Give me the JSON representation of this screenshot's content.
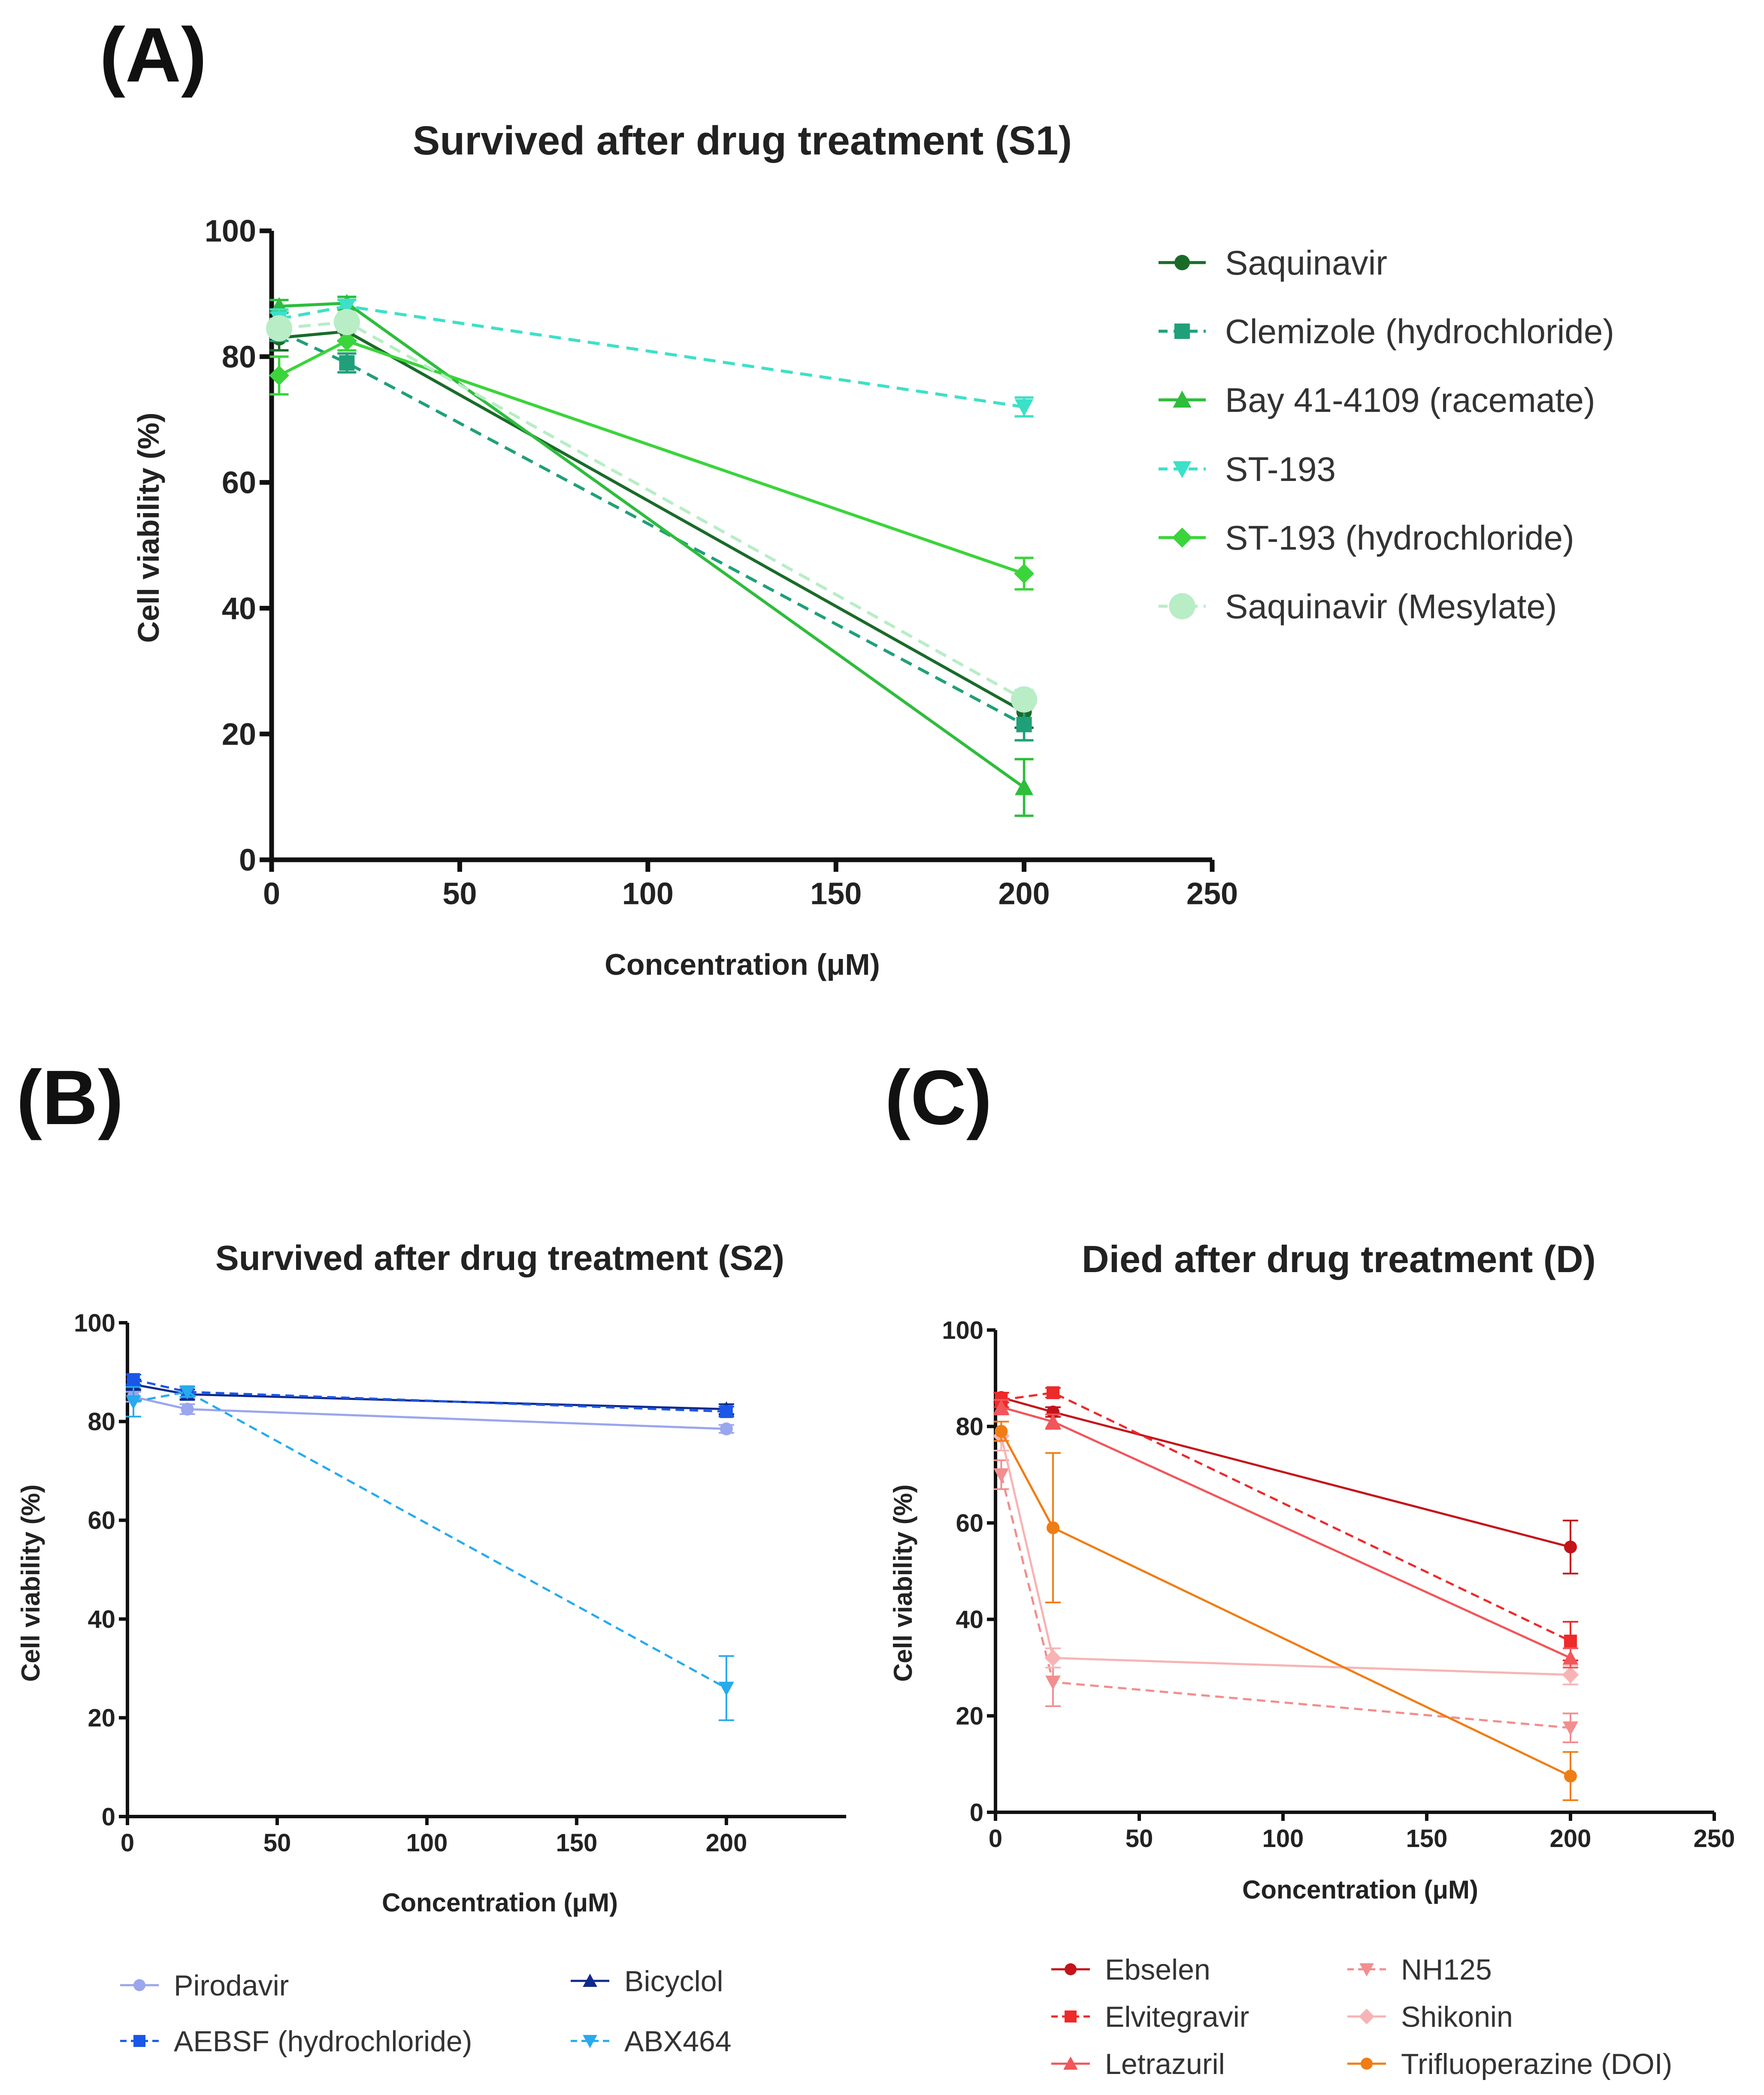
{
  "panels": {
    "A": "(A)",
    "B": "(B)",
    "C": "(C)"
  },
  "chart_data": [
    {
      "id": "A",
      "type": "line",
      "title": "Survived after drug treatment (S1)",
      "xlabel": "Concentration (μM)",
      "ylabel": "Cell viability (%)",
      "xlim": [
        0,
        250
      ],
      "ylim": [
        0,
        100
      ],
      "xticks": [
        0,
        50,
        100,
        150,
        200,
        250
      ],
      "yticks": [
        0,
        20,
        40,
        60,
        80,
        100
      ],
      "legend_position": "right",
      "series": [
        {
          "name": "Saquinavir",
          "color": "#1a6b2a",
          "dash": false,
          "marker": "circle",
          "x": [
            2,
            20,
            200
          ],
          "y": [
            83,
            84,
            23.5
          ],
          "err": [
            2,
            1.5,
            2.5
          ]
        },
        {
          "name": "Clemizole (hydrochloride)",
          "color": "#20a07a",
          "dash": true,
          "marker": "square",
          "x": [
            2,
            20,
            200
          ],
          "y": [
            84,
            79,
            21.5
          ],
          "err": [
            1.5,
            1.5,
            2.5
          ]
        },
        {
          "name": "Bay 41-4109 (racemate)",
          "color": "#2ebd3c",
          "dash": false,
          "marker": "triangle-up",
          "x": [
            2,
            20,
            200
          ],
          "y": [
            88,
            88.5,
            11.5
          ],
          "err": [
            1,
            1,
            4.5
          ]
        },
        {
          "name": "ST-193",
          "color": "#3de0c8",
          "dash": true,
          "marker": "triangle-down",
          "x": [
            2,
            20,
            200
          ],
          "y": [
            86,
            88,
            72
          ],
          "err": [
            1.5,
            1,
            1.5
          ]
        },
        {
          "name": "ST-193 (hydrochloride)",
          "color": "#3bd43b",
          "dash": false,
          "marker": "diamond",
          "x": [
            2,
            20,
            200
          ],
          "y": [
            77,
            82.5,
            45.5
          ],
          "err": [
            3,
            1.5,
            2.5
          ]
        },
        {
          "name": "Saquinavir (Mesylate)",
          "color": "#b8edc6",
          "dash": true,
          "marker": "big-circle",
          "x": [
            2,
            20,
            200
          ],
          "y": [
            84.5,
            85.5,
            25.5
          ],
          "err": [
            1.5,
            1.5,
            1.5
          ]
        }
      ]
    },
    {
      "id": "B",
      "type": "line",
      "title": "Survived after drug treatment (S2)",
      "xlabel": "Concentration (μM)",
      "ylabel": "Cell viability (%)",
      "xlim": [
        0,
        240
      ],
      "ylim": [
        0,
        100
      ],
      "xticks": [
        0,
        50,
        100,
        150,
        200
      ],
      "yticks": [
        0,
        20,
        40,
        60,
        80,
        100
      ],
      "legend_position": "bottom",
      "series": [
        {
          "name": "Pirodavir",
          "color": "#9aa6ee",
          "dash": false,
          "marker": "circle",
          "x": [
            2,
            20,
            200
          ],
          "y": [
            85,
            82.5,
            78.5
          ],
          "err": [
            1,
            1,
            0.8
          ]
        },
        {
          "name": "Bicyclol",
          "color": "#0d2a8c",
          "dash": false,
          "marker": "triangle-up",
          "x": [
            2,
            20,
            200
          ],
          "y": [
            87.5,
            85.5,
            82.5
          ],
          "err": [
            1,
            1,
            1
          ]
        },
        {
          "name": "AEBSF (hydrochloride)",
          "color": "#1a56e8",
          "dash": true,
          "marker": "square",
          "x": [
            2,
            20,
            200
          ],
          "y": [
            88.5,
            86,
            82
          ],
          "err": [
            1,
            1,
            1
          ]
        },
        {
          "name": "ABX464",
          "color": "#27aaee",
          "dash": true,
          "marker": "triangle-down",
          "x": [
            2,
            20,
            200
          ],
          "y": [
            84,
            86,
            26
          ],
          "err": [
            3,
            1,
            6.5
          ]
        }
      ]
    },
    {
      "id": "C",
      "type": "line",
      "title": "Died after drug treatment  (D)",
      "xlabel": "Concentration (μM)",
      "ylabel": "Cell viability (%)",
      "xlim": [
        0,
        250
      ],
      "ylim": [
        0,
        100
      ],
      "xticks": [
        0,
        50,
        100,
        150,
        200,
        250
      ],
      "yticks": [
        0,
        20,
        40,
        60,
        80,
        100
      ],
      "legend_position": "bottom",
      "series": [
        {
          "name": "Ebselen",
          "color": "#c4141a",
          "dash": false,
          "marker": "circle",
          "x": [
            2,
            20,
            200
          ],
          "y": [
            86,
            83,
            55
          ],
          "err": [
            1,
            1,
            5.5
          ]
        },
        {
          "name": "NH125",
          "color": "#f28e8e",
          "dash": true,
          "marker": "triangle-down",
          "x": [
            2,
            20,
            200
          ],
          "y": [
            70,
            27,
            17.5
          ],
          "err": [
            3,
            5,
            3
          ]
        },
        {
          "name": "Elvitegravir",
          "color": "#ee2a2a",
          "dash": true,
          "marker": "square",
          "x": [
            2,
            20,
            200
          ],
          "y": [
            85.5,
            87,
            35.5
          ],
          "err": [
            1.5,
            1,
            4
          ]
        },
        {
          "name": "Shikonin",
          "color": "#f8b4b4",
          "dash": false,
          "marker": "diamond",
          "x": [
            2,
            20,
            200
          ],
          "y": [
            78,
            32,
            28.5
          ],
          "err": [
            3,
            2,
            2
          ]
        },
        {
          "name": "Letrazuril",
          "color": "#f2555a",
          "dash": false,
          "marker": "triangle-up",
          "x": [
            2,
            20,
            200
          ],
          "y": [
            84,
            81,
            32
          ],
          "err": [
            1.5,
            1.5,
            2
          ]
        },
        {
          "name": "Trifluoperazine (DOI)",
          "color": "#f07d14",
          "dash": false,
          "marker": "circle",
          "x": [
            2,
            20,
            200
          ],
          "y": [
            79,
            59,
            7.5
          ],
          "err": [
            2,
            15.5,
            5
          ]
        }
      ]
    }
  ]
}
